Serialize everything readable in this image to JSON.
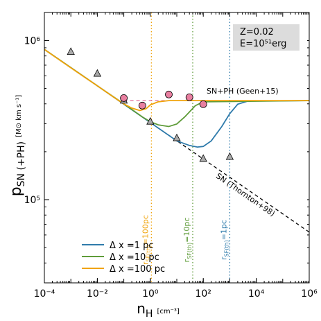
{
  "chart_data": {
    "type": "line",
    "x_label": {
      "main": "n",
      "sub": "H",
      "units": "[cm⁻³]"
    },
    "y_label": {
      "main": "p",
      "sub": "SN (+PH)",
      "units": "[M⊙ km s⁻¹]"
    },
    "x_log": true,
    "y_log": true,
    "xlim": [
      0.0001,
      1000000
    ],
    "ylim": [
      30000,
      1500000
    ],
    "xticks": [
      {
        "value": 0.0001,
        "label": "10⁻⁴"
      },
      {
        "value": 0.01,
        "label": "10⁻²"
      },
      {
        "value": 1,
        "label": "10⁰"
      },
      {
        "value": 100,
        "label": "10²"
      },
      {
        "value": 10000,
        "label": "10⁴"
      },
      {
        "value": 1000000,
        "label": "10⁶"
      }
    ],
    "yticks": [
      {
        "value": 100000,
        "label": "10⁵"
      },
      {
        "value": 1000000,
        "label": "10⁶"
      }
    ],
    "legend": "lower left",
    "series": [
      {
        "name": "Δ x =1 pc",
        "color": "#2f7bab",
        "x": [
          0.0001,
          0.01,
          1,
          10,
          30,
          60,
          100,
          200,
          500,
          1000,
          2000,
          5000,
          1000000
        ],
        "values": [
          880000,
          519000,
          305000,
          234000,
          219000,
          214000,
          216000,
          234000,
          288000,
          347000,
          398000,
          417000,
          419000
        ]
      },
      {
        "name": "Δ x =10 pc",
        "color": "#5f9c3a",
        "x": [
          0.0001,
          0.01,
          0.1,
          0.5,
          1,
          2,
          5,
          10,
          20,
          50,
          100,
          1000000
        ],
        "values": [
          880000,
          519000,
          400000,
          331000,
          309000,
          295000,
          288000,
          299000,
          331000,
          389000,
          412000,
          419000
        ]
      },
      {
        "name": "Δ x =100 pc",
        "color": "#f0a30a",
        "x": [
          0.0001,
          0.001,
          0.01,
          0.05,
          0.1,
          0.2,
          0.4,
          0.7,
          1,
          2,
          5,
          1000000
        ],
        "values": [
          880000,
          674000,
          519000,
          431000,
          400000,
          376000,
          363000,
          373000,
          394000,
          412000,
          419000,
          419000
        ]
      }
    ],
    "reference_lines": [
      {
        "label": "SN (Thornton+98)",
        "color": "#000000",
        "x": [
          0.0001,
          1000000
        ],
        "values": [
          880000,
          62500
        ]
      },
      {
        "label": "SN+PH (Geen+15)",
        "color": "#e06a9a",
        "x": [
          0.1,
          1000000
        ],
        "values": [
          419000,
          419000
        ]
      }
    ],
    "markers": [
      {
        "marker": "triangle",
        "color": "#aaaaaa",
        "x": [
          0.001,
          0.01,
          0.1,
          1,
          10,
          100,
          1000
        ],
        "values": [
          850000,
          620000,
          420000,
          310000,
          244000,
          181000,
          186000
        ]
      },
      {
        "marker": "circle",
        "color": "#e87fa0",
        "x": [
          0.1,
          0.5,
          5,
          30,
          100
        ],
        "values": [
          435000,
          390000,
          458000,
          440000,
          398000
        ]
      }
    ],
    "vlines": [
      {
        "x": 1.1,
        "color": "#f0a30a",
        "label": {
          "main": "r",
          "sub": "SF(th)",
          "rest": "=100pc"
        }
      },
      {
        "x": 40,
        "color": "#5f9c3a",
        "label": {
          "main": "r",
          "sub": "SF(th)",
          "rest": "=10pc"
        }
      },
      {
        "x": 1000,
        "color": "#2f7bab",
        "label": {
          "main": "r",
          "sub": "SF(th)",
          "rest": "=1pc"
        }
      }
    ],
    "info_box": [
      "Z=0.02",
      "E=10⁵¹erg"
    ]
  }
}
